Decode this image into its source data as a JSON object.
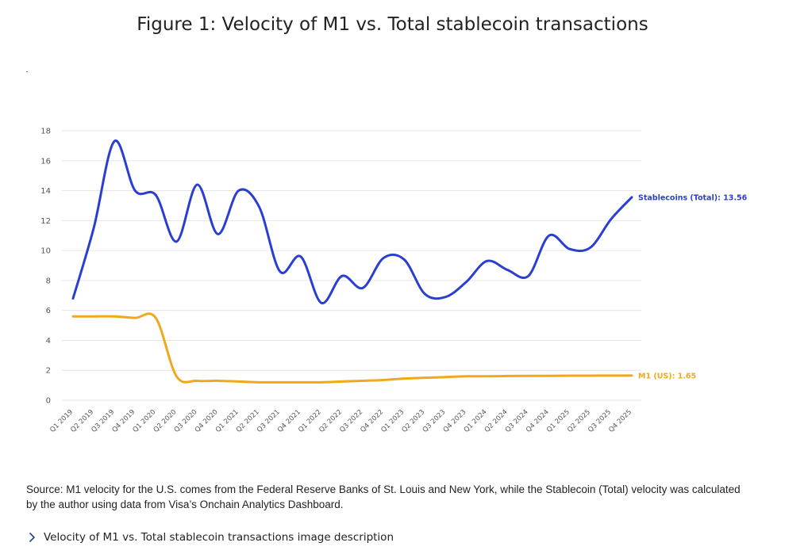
{
  "page": {
    "title": "Figure 1: Velocity of M1 vs. Total stablecoin transactions",
    "source": "Source: M1 velocity for the U.S. comes from the Federal Reserve Banks of St. Louis and New York, while the Stablecoin (Total) velocity was calculated by the author using data from Visa’s Onchain Analytics Dashboard.",
    "description_toggle": "Velocity of M1 vs. Total stablecoin transactions image description",
    "chevron_icon": "chevron-right-icon"
  },
  "chart_data": {
    "type": "line",
    "title": "Figure 1: Velocity of M1 vs. Total stablecoin transactions",
    "xlabel": "",
    "ylabel": "",
    "ylim": [
      0,
      18
    ],
    "yticks": [
      0,
      2,
      4,
      6,
      8,
      10,
      12,
      14,
      16,
      18
    ],
    "grid": true,
    "categories": [
      "Q1 2019",
      "Q2 2019",
      "Q3 2019",
      "Q4 2019",
      "Q1 2020",
      "Q2 2020",
      "Q3 2020",
      "Q4 2020",
      "Q1 2021",
      "Q2 2021",
      "Q3 2021",
      "Q4 2021",
      "Q1 2022",
      "Q2 2022",
      "Q3 2022",
      "Q4 2022",
      "Q1 2023",
      "Q2 2023",
      "Q3 2023",
      "Q4 2023",
      "Q1 2024",
      "Q2 2024",
      "Q3 2024",
      "Q4 2024",
      "Q1 2025",
      "Q2 2025",
      "Q3 2025",
      "Q4 2025"
    ],
    "series": [
      {
        "name": "Stablecoins (Total)",
        "label": "Stablecoins (Total): 13.56",
        "color": "#2a3fd1",
        "values": [
          6.8,
          11.5,
          17.3,
          14.0,
          13.7,
          10.6,
          14.4,
          11.1,
          14.0,
          12.9,
          8.6,
          9.6,
          6.5,
          8.3,
          7.5,
          9.5,
          9.4,
          7.1,
          6.9,
          7.9,
          9.3,
          8.7,
          8.3,
          11.0,
          10.1,
          10.2,
          12.1,
          13.56
        ]
      },
      {
        "name": "M1 (US)",
        "label": "M1 (US): 1.65",
        "color": "#f0a81c",
        "values": [
          5.6,
          5.6,
          5.6,
          5.5,
          5.5,
          1.6,
          1.3,
          1.3,
          1.25,
          1.2,
          1.2,
          1.2,
          1.2,
          1.25,
          1.3,
          1.35,
          1.45,
          1.5,
          1.55,
          1.6,
          1.6,
          1.62,
          1.63,
          1.63,
          1.64,
          1.64,
          1.65,
          1.65
        ]
      }
    ]
  }
}
